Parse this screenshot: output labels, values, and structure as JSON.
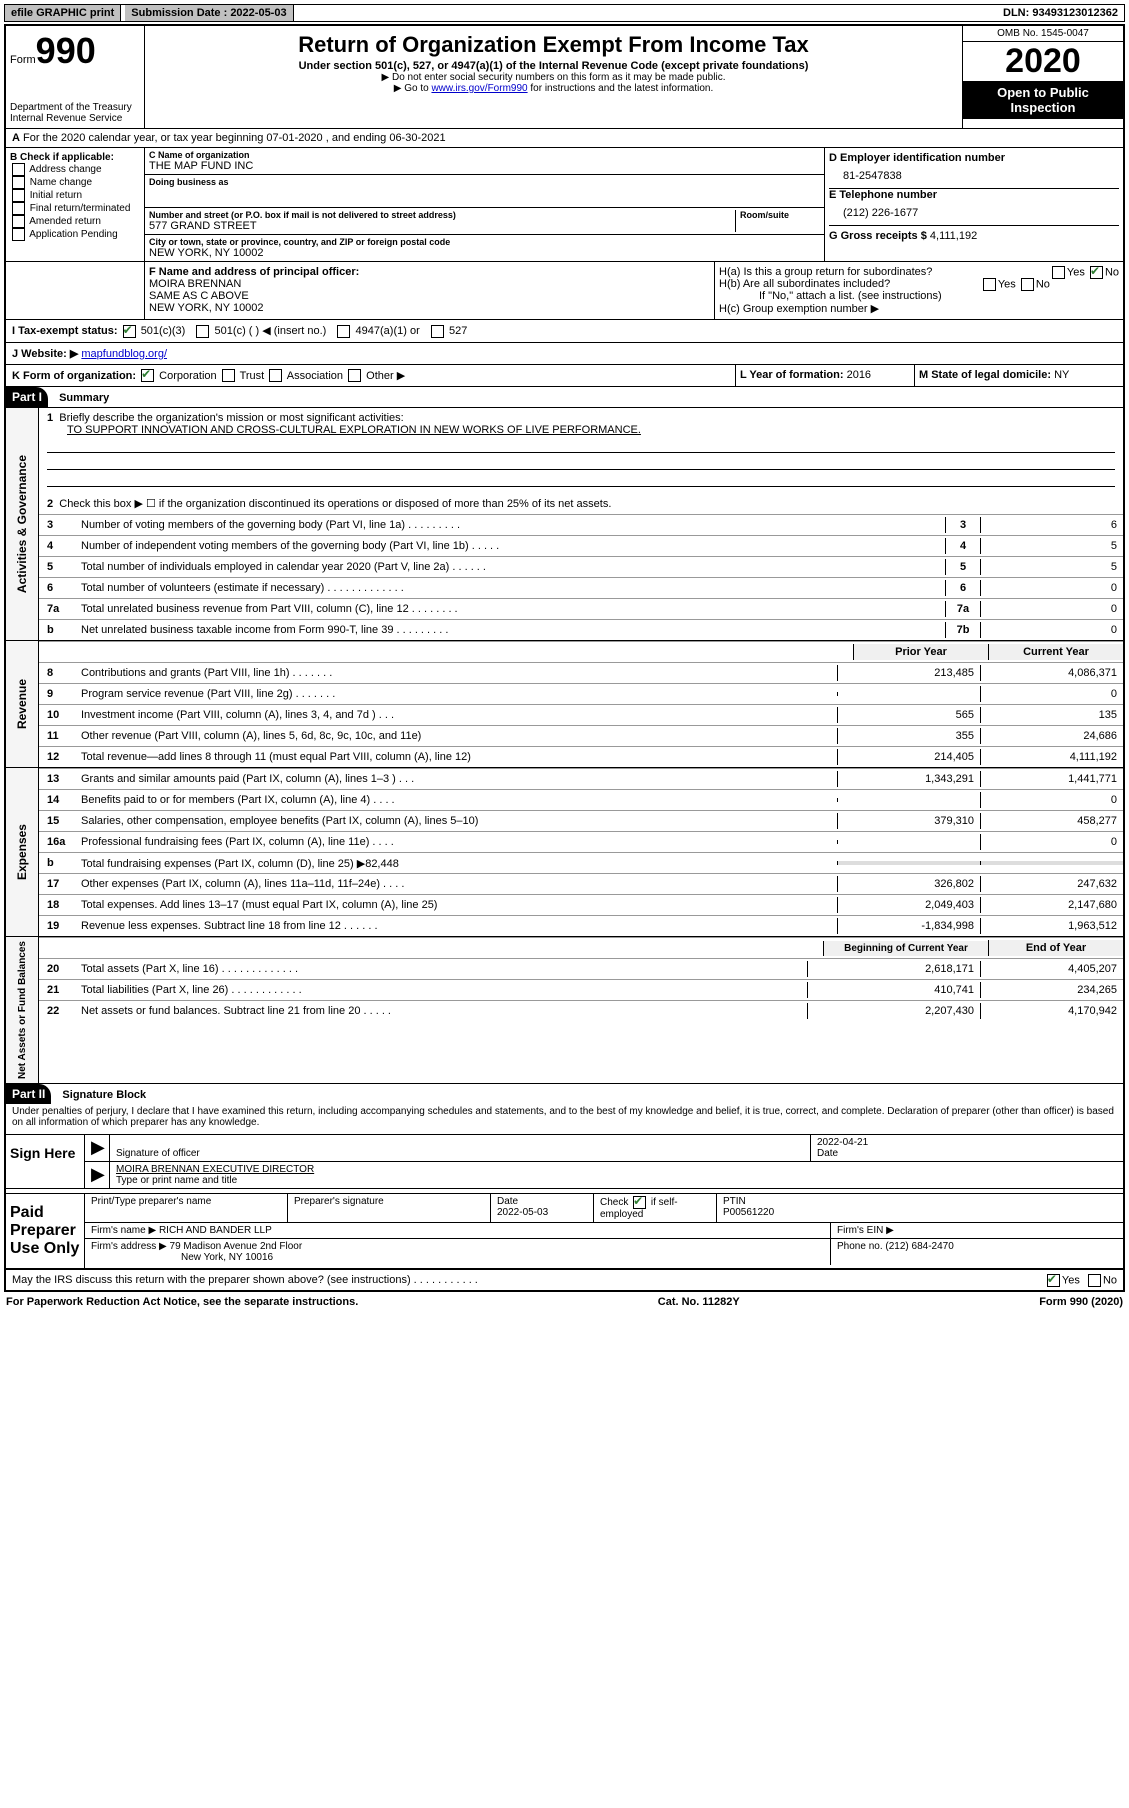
{
  "topbar": {
    "efile": "efile GRAPHIC print",
    "submission": "Submission Date : 2022-05-03",
    "dln": "DLN: 93493123012362"
  },
  "header": {
    "form_label": "Form",
    "form_number": "990",
    "dept": "Department of the Treasury\nInternal Revenue Service",
    "title": "Return of Organization Exempt From Income Tax",
    "subtitle": "Under section 501(c), 527, or 4947(a)(1) of the Internal Revenue Code (except private foundations)",
    "note1": "▶ Do not enter social security numbers on this form as it may be made public.",
    "note2_pre": "▶ Go to ",
    "note2_link": "www.irs.gov/Form990",
    "note2_post": " for instructions and the latest information.",
    "omb": "OMB No. 1545-0047",
    "year": "2020",
    "inspection": "Open to Public Inspection"
  },
  "line_a": "For the 2020 calendar year, or tax year beginning 07-01-2020    , and ending 06-30-2021",
  "box_b": {
    "title": "B Check if applicable:",
    "items": [
      "Address change",
      "Name change",
      "Initial return",
      "Final return/terminated",
      "Amended return",
      "Application Pending"
    ]
  },
  "box_c": {
    "label_name": "C Name of organization",
    "name": "THE MAP FUND INC",
    "dba_label": "Doing business as",
    "addr_label": "Number and street (or P.O. box if mail is not delivered to street address)",
    "room_label": "Room/suite",
    "street": "577 GRAND STREET",
    "city_label": "City or town, state or province, country, and ZIP or foreign postal code",
    "city": "NEW YORK, NY  10002"
  },
  "box_d": {
    "label": "D Employer identification number",
    "value": "81-2547838"
  },
  "box_e": {
    "label": "E Telephone number",
    "value": "(212) 226-1677"
  },
  "box_g": {
    "label": "G Gross receipts $",
    "value": "4,111,192"
  },
  "box_f": {
    "label": "F Name and address of principal officer:",
    "name": "MOIRA BRENNAN",
    "addr1": "SAME AS C ABOVE",
    "addr2": "NEW YORK, NY  10002"
  },
  "box_h": {
    "ha": "H(a)  Is this a group return for subordinates?",
    "hb": "H(b)  Are all subordinates included?",
    "note": "If \"No,\" attach a list. (see instructions)",
    "hc": "H(c)  Group exemption number ▶"
  },
  "box_i": {
    "label": "I  Tax-exempt status:",
    "opts": [
      "501(c)(3)",
      "501(c) (   ) ◀ (insert no.)",
      "4947(a)(1) or",
      "527"
    ]
  },
  "box_j": {
    "label": "J  Website: ▶",
    "value": "mapfundblog.org/"
  },
  "box_k": {
    "label": "K Form of organization:",
    "opts": [
      "Corporation",
      "Trust",
      "Association",
      "Other ▶"
    ]
  },
  "box_l": {
    "label": "L Year of formation:",
    "value": "2016"
  },
  "box_m": {
    "label": "M State of legal domicile:",
    "value": "NY"
  },
  "part1": {
    "header": "Part I",
    "title": "Summary",
    "line1_label": "Briefly describe the organization's mission or most significant activities:",
    "line1_text": "TO SUPPORT INNOVATION AND CROSS-CULTURAL EXPLORATION IN NEW WORKS OF LIVE PERFORMANCE.",
    "line2": "Check this box ▶ ☐  if the organization discontinued its operations or disposed of more than 25% of its net assets.",
    "sections": [
      {
        "label": "Activities & Governance",
        "rows": [
          {
            "n": "3",
            "d": "Number of voting members of the governing body (Part VI, line 1a)   .    .    .    .    .    .    .    .    .",
            "box": "3",
            "v": "6"
          },
          {
            "n": "4",
            "d": "Number of independent voting members of the governing body (Part VI, line 1b)   .    .    .    .    .",
            "box": "4",
            "v": "5"
          },
          {
            "n": "5",
            "d": "Total number of individuals employed in calendar year 2020 (Part V, line 2a)   .    .    .    .    .    .",
            "box": "5",
            "v": "5"
          },
          {
            "n": "6",
            "d": "Total number of volunteers (estimate if necessary)   .    .    .    .    .    .    .    .    .    .    .    .    .",
            "box": "6",
            "v": "0"
          },
          {
            "n": "7a",
            "d": "Total unrelated business revenue from Part VIII, column (C), line 12   .    .    .    .    .    .    .    .",
            "box": "7a",
            "v": "0"
          },
          {
            "n": "b",
            "d": "Net unrelated business taxable income from Form 990-T, line 39   .    .    .    .    .    .    .    .    .",
            "box": "7b",
            "v": "0"
          }
        ]
      }
    ],
    "two_col_header": {
      "prior": "Prior Year",
      "current": "Current Year"
    },
    "revenue": {
      "label": "Revenue",
      "rows": [
        {
          "n": "8",
          "d": "Contributions and grants (Part VIII, line 1h)   .    .    .    .    .    .    .",
          "p": "213,485",
          "c": "4,086,371"
        },
        {
          "n": "9",
          "d": "Program service revenue (Part VIII, line 2g)   .    .    .    .    .    .    .",
          "p": "",
          "c": "0"
        },
        {
          "n": "10",
          "d": "Investment income (Part VIII, column (A), lines 3, 4, and 7d )   .    .    .",
          "p": "565",
          "c": "135"
        },
        {
          "n": "11",
          "d": "Other revenue (Part VIII, column (A), lines 5, 6d, 8c, 9c, 10c, and 11e)",
          "p": "355",
          "c": "24,686"
        },
        {
          "n": "12",
          "d": "Total revenue—add lines 8 through 11 (must equal Part VIII, column (A), line 12)",
          "p": "214,405",
          "c": "4,111,192"
        }
      ]
    },
    "expenses": {
      "label": "Expenses",
      "rows": [
        {
          "n": "13",
          "d": "Grants and similar amounts paid (Part IX, column (A), lines 1–3 )   .    .    .",
          "p": "1,343,291",
          "c": "1,441,771"
        },
        {
          "n": "14",
          "d": "Benefits paid to or for members (Part IX, column (A), line 4)   .    .    .    .",
          "p": "",
          "c": "0"
        },
        {
          "n": "15",
          "d": "Salaries, other compensation, employee benefits (Part IX, column (A), lines 5–10)",
          "p": "379,310",
          "c": "458,277"
        },
        {
          "n": "16a",
          "d": "Professional fundraising fees (Part IX, column (A), line 11e)   .    .    .    .",
          "p": "",
          "c": "0"
        },
        {
          "n": "b",
          "d": "Total fundraising expenses (Part IX, column (D), line 25) ▶82,448",
          "p": null,
          "c": null
        },
        {
          "n": "17",
          "d": "Other expenses (Part IX, column (A), lines 11a–11d, 11f–24e)   .    .    .    .",
          "p": "326,802",
          "c": "247,632"
        },
        {
          "n": "18",
          "d": "Total expenses. Add lines 13–17 (must equal Part IX, column (A), line 25)",
          "p": "2,049,403",
          "c": "2,147,680"
        },
        {
          "n": "19",
          "d": "Revenue less expenses. Subtract line 18 from line 12   .    .    .    .    .    .",
          "p": "-1,834,998",
          "c": "1,963,512"
        }
      ]
    },
    "net_header": {
      "prior": "Beginning of Current Year",
      "current": "End of Year"
    },
    "net": {
      "label": "Net Assets or Fund Balances",
      "rows": [
        {
          "n": "20",
          "d": "Total assets (Part X, line 16)   .    .    .    .    .    .    .    .    .    .    .    .    .",
          "p": "2,618,171",
          "c": "4,405,207"
        },
        {
          "n": "21",
          "d": "Total liabilities (Part X, line 26)   .    .    .    .    .    .    .    .    .    .    .    .",
          "p": "410,741",
          "c": "234,265"
        },
        {
          "n": "22",
          "d": "Net assets or fund balances. Subtract line 21 from line 20   .    .    .    .    .",
          "p": "2,207,430",
          "c": "4,170,942"
        }
      ]
    }
  },
  "part2": {
    "header": "Part II",
    "title": "Signature Block",
    "perjury": "Under penalties of perjury, I declare that I have examined this return, including accompanying schedules and statements, and to the best of my knowledge and belief, it is true, correct, and complete. Declaration of preparer (other than officer) is based on all information of which preparer has any knowledge."
  },
  "sign": {
    "label": "Sign Here",
    "sig_of_officer": "Signature of officer",
    "date_label": "Date",
    "date": "2022-04-21",
    "name": "MOIRA BRENNAN  EXECUTIVE DIRECTOR",
    "type_label": "Type or print name and title"
  },
  "preparer": {
    "label": "Paid Preparer Use Only",
    "print_name": "Print/Type preparer's name",
    "sig": "Preparer's signature",
    "date_label": "Date",
    "date": "2022-05-03",
    "check_self": "Check ☑ if self-employed",
    "ptin_label": "PTIN",
    "ptin": "P00561220",
    "firm_name_label": "Firm's name     ▶",
    "firm_name": "RICH AND BANDER LLP",
    "firm_ein": "Firm's EIN ▶",
    "firm_addr_label": "Firm's address ▶",
    "firm_addr1": "79 Madison Avenue 2nd Floor",
    "firm_addr2": "New York, NY  10016",
    "phone_label": "Phone no.",
    "phone": "(212) 684-2470"
  },
  "discuss": "May the IRS discuss this return with the preparer shown above? (see instructions)   .    .    .    .    .    .    .    .    .    .    .",
  "footer": {
    "pra": "For Paperwork Reduction Act Notice, see the separate instructions.",
    "cat": "Cat. No. 11282Y",
    "form": "Form 990 (2020)"
  }
}
